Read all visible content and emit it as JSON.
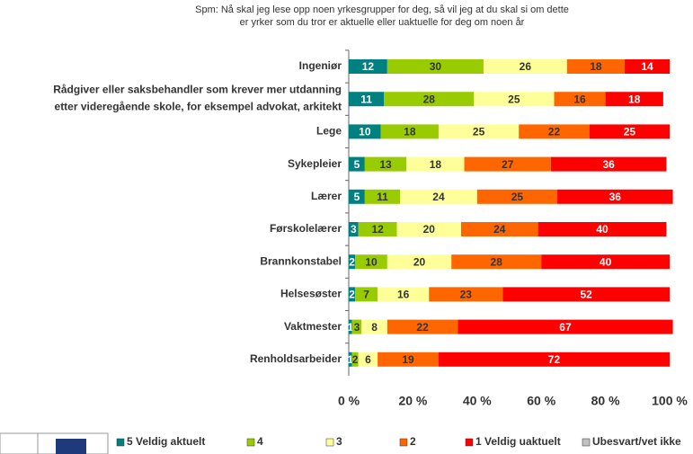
{
  "chart_data": {
    "type": "stacked-bar-horizontal",
    "title": "Spm: Nå skal jeg lese opp noen yrkesgrupper for deg, så vil jeg at du skal si om dette\ner yrker som du tror er aktuelle eller uaktuelle for deg om noen år",
    "categories": [
      "Ingeniør",
      "Rådgiver eller saksbehandler som krever mer utdanning\netter videregående skole, for eksempel advokat, arkitekt",
      "Lege",
      "Sykepleier",
      "Lærer",
      "Førskolelærer",
      "Brannkonstabel",
      "Helsesøster",
      "Vaktmester",
      "Renholdsarbeider"
    ],
    "series": [
      {
        "name": "5 Veldig aktuelt",
        "color": "#008080",
        "label_color": "#ffffff",
        "values": [
          12,
          11,
          10,
          5,
          5,
          3,
          2,
          2,
          1,
          1
        ]
      },
      {
        "name": "4",
        "color": "#99cc00",
        "label_color": "#333333",
        "values": [
          30,
          28,
          18,
          13,
          11,
          12,
          10,
          7,
          3,
          2
        ]
      },
      {
        "name": "3",
        "color": "#ffff99",
        "label_color": "#333333",
        "values": [
          26,
          25,
          25,
          18,
          24,
          20,
          20,
          16,
          8,
          6
        ]
      },
      {
        "name": "2",
        "color": "#ff6600",
        "label_color": "#333333",
        "values": [
          18,
          16,
          22,
          27,
          25,
          24,
          28,
          23,
          22,
          19
        ]
      },
      {
        "name": "1 Veldig uaktuelt",
        "color": "#ff0000",
        "label_color": "#ffffff",
        "values": [
          14,
          18,
          25,
          36,
          36,
          40,
          40,
          52,
          67,
          72
        ]
      },
      {
        "name": "Ubesvart/vet ikke",
        "color": "#c0c0c0",
        "label_color": "#333333",
        "values": [
          0,
          0,
          0,
          0,
          0,
          0,
          0,
          0,
          0,
          0
        ]
      }
    ],
    "xlim": [
      0,
      100
    ],
    "xticks": [
      {
        "value": 0,
        "label": "0 %"
      },
      {
        "value": 20,
        "label": "20 %"
      },
      {
        "value": 40,
        "label": "40 %"
      },
      {
        "value": 60,
        "label": "60 %"
      },
      {
        "value": 80,
        "label": "80 %"
      },
      {
        "value": 100,
        "label": "100 %"
      }
    ],
    "legend": "bottom"
  }
}
